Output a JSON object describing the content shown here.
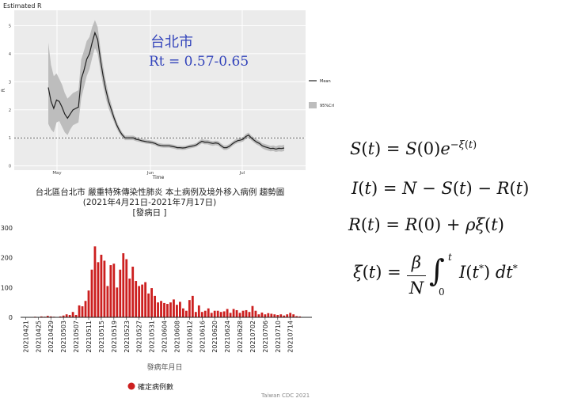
{
  "chart_data": [
    {
      "type": "line",
      "title": "Estimated R",
      "xlabel": "Time",
      "ylabel": "R",
      "ylim": [
        -0.15,
        5.55
      ],
      "y_ticks": [
        0,
        1,
        2,
        3,
        4,
        5
      ],
      "x_ticks": [
        "May",
        "Jun",
        "Jul"
      ],
      "reference_line": 1,
      "grid": true,
      "legend_position": "right",
      "legend": {
        "mean": "Mean",
        "band": "95%CrI"
      },
      "annotation": {
        "line1": "台北市",
        "line2": "Rt = 0.57-0.65"
      },
      "x_day_offsets": [
        0,
        1,
        2,
        3,
        4,
        5,
        6,
        7,
        8,
        9,
        10,
        11,
        12,
        13,
        14,
        15,
        16,
        17,
        18,
        19,
        20,
        21,
        22,
        23,
        24,
        25,
        26,
        27,
        28,
        29,
        30,
        31,
        32,
        33,
        34,
        35,
        36,
        37,
        38,
        39,
        40,
        41,
        42,
        43,
        44,
        45,
        46,
        47,
        48,
        49,
        50,
        51,
        52,
        53,
        54,
        55,
        56,
        57,
        58,
        59,
        60,
        61,
        62,
        63,
        64,
        65,
        66,
        67,
        68,
        69,
        70,
        71,
        72,
        73,
        74,
        75,
        76,
        77,
        78,
        79,
        80,
        81,
        82,
        83,
        84,
        85,
        86
      ],
      "series": [
        {
          "name": "Mean",
          "values": [
            2.8,
            2.3,
            2.05,
            2.35,
            2.3,
            2.1,
            1.85,
            1.7,
            1.85,
            2.0,
            2.05,
            2.1,
            3.1,
            3.4,
            3.8,
            4.0,
            4.4,
            4.75,
            4.5,
            3.8,
            3.2,
            2.7,
            2.3,
            2.0,
            1.7,
            1.45,
            1.25,
            1.1,
            1.0,
            1.0,
            1.0,
            1.0,
            0.95,
            0.93,
            0.9,
            0.88,
            0.86,
            0.85,
            0.83,
            0.8,
            0.75,
            0.73,
            0.72,
            0.72,
            0.72,
            0.7,
            0.68,
            0.65,
            0.65,
            0.64,
            0.65,
            0.68,
            0.7,
            0.72,
            0.75,
            0.82,
            0.88,
            0.85,
            0.85,
            0.82,
            0.8,
            0.82,
            0.8,
            0.72,
            0.65,
            0.65,
            0.7,
            0.78,
            0.85,
            0.9,
            0.92,
            0.95,
            1.05,
            1.1,
            1.0,
            0.92,
            0.85,
            0.8,
            0.72,
            0.68,
            0.65,
            0.62,
            0.63,
            0.6,
            0.63,
            0.62,
            0.64
          ]
        },
        {
          "name": "95%CrI lower",
          "values": [
            1.5,
            1.3,
            1.2,
            1.55,
            1.6,
            1.4,
            1.2,
            1.1,
            1.3,
            1.45,
            1.5,
            1.55,
            2.4,
            2.8,
            3.2,
            3.45,
            3.85,
            4.2,
            4.0,
            3.4,
            2.85,
            2.4,
            2.05,
            1.8,
            1.55,
            1.32,
            1.14,
            1.01,
            0.92,
            0.92,
            0.92,
            0.92,
            0.88,
            0.86,
            0.83,
            0.81,
            0.79,
            0.78,
            0.76,
            0.73,
            0.68,
            0.66,
            0.65,
            0.65,
            0.65,
            0.63,
            0.61,
            0.58,
            0.58,
            0.57,
            0.58,
            0.61,
            0.63,
            0.65,
            0.68,
            0.74,
            0.8,
            0.77,
            0.77,
            0.74,
            0.72,
            0.74,
            0.72,
            0.64,
            0.57,
            0.57,
            0.62,
            0.7,
            0.77,
            0.82,
            0.84,
            0.87,
            0.96,
            1.01,
            0.91,
            0.83,
            0.76,
            0.71,
            0.63,
            0.58,
            0.55,
            0.52,
            0.53,
            0.5,
            0.52,
            0.51,
            0.53
          ]
        },
        {
          "name": "95%CrI upper",
          "values": [
            4.4,
            3.6,
            3.2,
            3.3,
            3.1,
            2.9,
            2.6,
            2.4,
            2.5,
            2.6,
            2.65,
            2.7,
            3.8,
            4.1,
            4.45,
            4.6,
            4.95,
            5.2,
            4.95,
            4.2,
            3.55,
            3.0,
            2.55,
            2.2,
            1.85,
            1.58,
            1.36,
            1.19,
            1.08,
            1.08,
            1.08,
            1.08,
            1.03,
            1.0,
            0.97,
            0.95,
            0.93,
            0.92,
            0.9,
            0.87,
            0.82,
            0.8,
            0.79,
            0.79,
            0.79,
            0.77,
            0.75,
            0.72,
            0.72,
            0.71,
            0.72,
            0.75,
            0.77,
            0.79,
            0.82,
            0.9,
            0.96,
            0.93,
            0.93,
            0.9,
            0.88,
            0.9,
            0.88,
            0.8,
            0.73,
            0.73,
            0.78,
            0.86,
            0.93,
            0.98,
            1.0,
            1.03,
            1.14,
            1.19,
            1.09,
            1.01,
            0.94,
            0.89,
            0.81,
            0.78,
            0.75,
            0.72,
            0.73,
            0.7,
            0.74,
            0.73,
            0.75
          ]
        }
      ]
    },
    {
      "type": "bar",
      "title": "台北區台北市 嚴重特殊傳染性肺炎 本土病例及境外移入病例 趨勢圖",
      "subtitle": "(2021年4月21日-2021年7月17日)",
      "subtitle2": "[發病日 ]",
      "xlabel": "發病年月日",
      "ylabel": "",
      "ylim": [
        0,
        300
      ],
      "y_ticks": [
        0,
        100,
        200,
        300
      ],
      "legend_position": "bottom",
      "legend": "確定病例數",
      "source": "Taiwan CDC 2021",
      "tick_labels": [
        "20210421",
        "20210425",
        "20210429",
        "20210503",
        "20210507",
        "20210511",
        "20210515",
        "20210519",
        "20210523",
        "20210527",
        "20210531",
        "20210604",
        "20210608",
        "20210612",
        "20210616",
        "20210620",
        "20210624",
        "20210628",
        "20210702",
        "20210706",
        "20210710",
        "20210714"
      ],
      "series": [
        {
          "name": "確定病例數",
          "values": [
            1,
            1,
            1,
            2,
            1,
            3,
            2,
            5,
            3,
            2,
            1,
            3,
            6,
            10,
            8,
            18,
            8,
            40,
            37,
            55,
            90,
            160,
            238,
            185,
            210,
            190,
            105,
            175,
            180,
            100,
            160,
            215,
            195,
            130,
            170,
            122,
            105,
            110,
            118,
            80,
            98,
            72,
            50,
            55,
            48,
            45,
            50,
            60,
            42,
            52,
            30,
            22,
            58,
            72,
            18,
            40,
            18,
            22,
            30,
            15,
            22,
            22,
            18,
            20,
            28,
            15,
            28,
            24,
            15,
            22,
            24,
            18,
            38,
            22,
            10,
            16,
            10,
            14,
            12,
            10,
            8,
            10,
            6,
            10,
            15,
            10,
            4,
            3
          ]
        }
      ]
    }
  ],
  "equations": {
    "eq1": "S(t) = S(0)e^{−ξ(t)}",
    "eq2": "I(t) = N − S(t) − R(t)",
    "eq3": "R(t) = R(0) + ρξ(t)",
    "eq4": "ξ(t) = (β/N) ∫_0^t I(t*) dt*"
  },
  "colors": {
    "bar": "#cc1f1f",
    "annotation": "#3344bb",
    "panel": "#ebebeb",
    "band": "#bdbdbd",
    "line": "#222222"
  }
}
